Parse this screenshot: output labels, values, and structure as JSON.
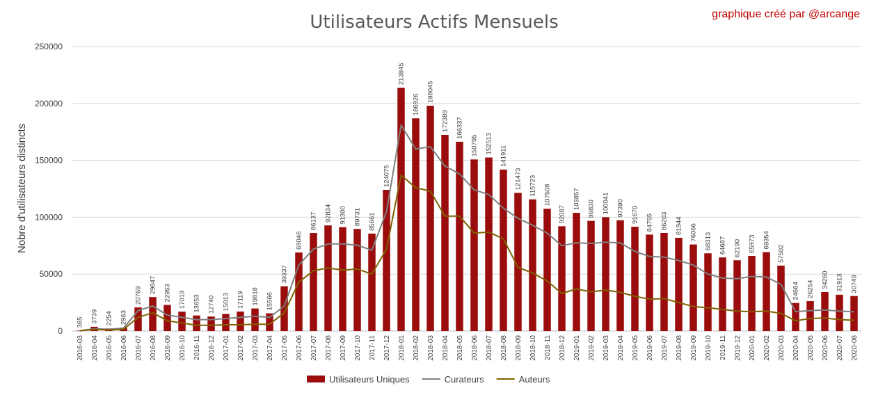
{
  "chart_data": {
    "type": "bar",
    "title": "Utilisateurs Actifs Mensuels",
    "subtitle": "graphique créé par  @arcange",
    "ylabel": "Nobre d'utilisateurs distincts",
    "xlabel": "",
    "ylim": [
      0,
      250000
    ],
    "yticks": [
      "0",
      "50000",
      "100000",
      "150000",
      "200000",
      "250000"
    ],
    "grid": true,
    "legend_position": "bottom",
    "categories": [
      "2016-03",
      "2016-04",
      "2016-05",
      "2016-06",
      "2016-07",
      "2016-08",
      "2016-09",
      "2016-10",
      "2016-11",
      "2016-12",
      "2017-01",
      "2017-02",
      "2017-03",
      "2017-04",
      "2017-05",
      "2017-06",
      "2017-07",
      "2017-08",
      "2017-09",
      "2017-10",
      "2017-11",
      "2017-12",
      "2018-01",
      "2018-02",
      "2018-03",
      "2018-04",
      "2018-05",
      "2018-06",
      "2018-07",
      "2018-08",
      "2018-09",
      "2018-10",
      "2018-11",
      "2018-12",
      "2019-01",
      "2019-02",
      "2019-03",
      "2019-04",
      "2019-05",
      "2019-06",
      "2019-07",
      "2019-08",
      "2019-09",
      "2019-10",
      "2019-11",
      "2019-12",
      "2020-01",
      "2020-02",
      "2020-03",
      "2020-04",
      "2020-05",
      "2020-06",
      "2020-07",
      "2020-08"
    ],
    "series": [
      {
        "name": "Utilisateurs Uniques",
        "kind": "bar",
        "color": "#9b0d0d",
        "values": [
          365,
          3739,
          2254,
          2963,
          20769,
          29847,
          22953,
          17019,
          13653,
          12740,
          15013,
          17119,
          19818,
          15566,
          39337,
          69046,
          86137,
          92834,
          91300,
          89731,
          85661,
          124075,
          213845,
          186926,
          198045,
          172389,
          166337,
          150795,
          152513,
          141911,
          121473,
          115723,
          107508,
          92087,
          103857,
          96830,
          100041,
          97390,
          91670,
          84755,
          86203,
          81944,
          76066,
          68313,
          64687,
          62190,
          65973,
          69354,
          57502,
          24664,
          26254,
          34260,
          31913,
          30749
        ],
        "labels": [
          "365",
          "3739",
          "2254",
          "2963",
          "20769",
          "29847",
          "22953",
          "17019",
          "13653",
          "12740",
          "15013",
          "17119",
          "19818",
          "15566",
          "39337",
          "69046",
          "86137",
          "92834",
          "91300",
          "89731",
          "85661",
          "124075",
          "213845",
          "186926",
          "198045",
          "172389",
          "166337",
          "150795",
          "152513",
          "141911",
          "121473",
          "115723",
          "107508",
          "92087",
          "103857",
          "96830",
          "100041",
          "97390",
          "91670",
          "84755",
          "86203",
          "81944",
          "76066",
          "68313",
          "64687",
          "62190",
          "65973",
          "69354",
          "57502",
          "24664",
          "26254",
          "34260",
          "31913",
          "30749"
        ]
      },
      {
        "name": "Curateurs",
        "kind": "line",
        "color": "#7f7f7f",
        "values": [
          300,
          2000,
          1500,
          2500,
          18000,
          22000,
          14000,
          12000,
          10000,
          10000,
          11000,
          12000,
          13000,
          12000,
          22000,
          58000,
          72000,
          76500,
          76500,
          75500,
          71000,
          105000,
          181000,
          160000,
          162000,
          145000,
          138000,
          124000,
          120000,
          108000,
          99000,
          93000,
          86000,
          75000,
          77500,
          77000,
          78000,
          77500,
          70000,
          65500,
          65000,
          62000,
          58000,
          50000,
          46500,
          46000,
          48000,
          47500,
          41000,
          17000,
          18000,
          18500,
          17500,
          17000
        ]
      },
      {
        "name": "Auteurs",
        "kind": "line",
        "color": "#7f6000",
        "values": [
          200,
          1500,
          1000,
          1500,
          12000,
          16000,
          9000,
          7000,
          5000,
          5000,
          5500,
          5500,
          6000,
          6000,
          16000,
          43000,
          53000,
          55500,
          53500,
          54500,
          50000,
          72000,
          137000,
          126000,
          123000,
          101000,
          101000,
          86000,
          87000,
          81000,
          56000,
          51000,
          44000,
          33000,
          37000,
          34500,
          36000,
          34000,
          30500,
          28000,
          28500,
          25000,
          21500,
          20500,
          19000,
          17500,
          17000,
          17500,
          15500,
          9000,
          11000,
          11500,
          10000,
          9500
        ]
      }
    ]
  }
}
